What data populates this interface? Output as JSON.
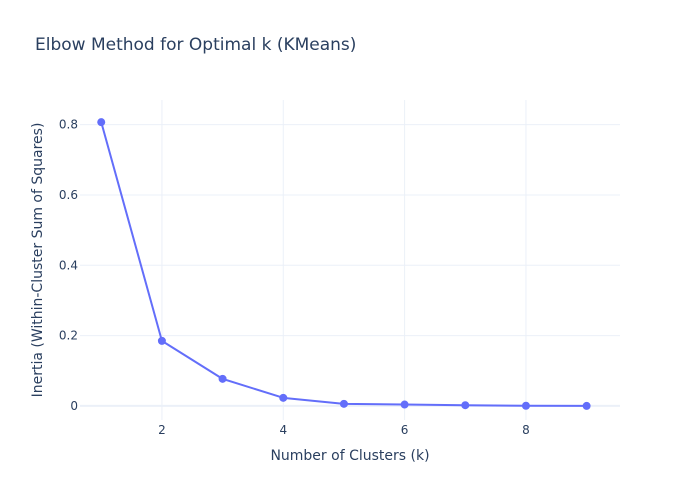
{
  "chart_data": {
    "type": "line",
    "title": "Elbow Method for Optimal k (KMeans)",
    "xlabel": "Number of Clusters (k)",
    "ylabel": "Inertia (Within-Cluster Sum of Squares)",
    "x": [
      1,
      2,
      3,
      4,
      5,
      6,
      7,
      8,
      9
    ],
    "series": [
      {
        "values": [
          0.807,
          0.185,
          0.077,
          0.023,
          0.006,
          0.004,
          0.002,
          0.0005,
          0.0
        ]
      }
    ],
    "xlim": [
      0.65,
      9.55
    ],
    "ylim": [
      -0.04,
      0.87
    ],
    "xticks": [
      2,
      4,
      6,
      8
    ],
    "yticks": [
      0,
      0.2,
      0.4,
      0.6,
      0.8
    ],
    "ytick_labels": [
      "0",
      "0.2",
      "0.4",
      "0.6",
      "0.8"
    ],
    "grid": true,
    "legend": "none",
    "colors": {
      "line": "#636efa",
      "text": "#2a3f5f",
      "grid": "#ebf0f8",
      "background": "#ffffff"
    }
  }
}
